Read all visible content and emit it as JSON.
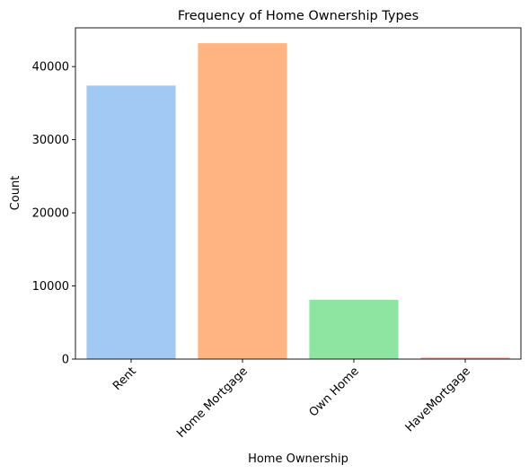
{
  "chart_data": {
    "type": "bar",
    "title": "Frequency of Home Ownership Types",
    "xlabel": "Home Ownership",
    "ylabel": "Count",
    "categories": [
      "Rent",
      "Home Mortgage",
      "Own Home",
      "HaveMortgage"
    ],
    "values": [
      37400,
      43200,
      8100,
      200
    ],
    "colors": [
      "#a1c9f4",
      "#ffb482",
      "#8de5a1",
      "#ff9f9b"
    ],
    "ylim": [
      0,
      45300
    ],
    "yticks": [
      0,
      10000,
      20000,
      30000,
      40000
    ],
    "ytick_labels": [
      "0",
      "10000",
      "20000",
      "30000",
      "40000"
    ],
    "grid": false,
    "legend": false
  }
}
